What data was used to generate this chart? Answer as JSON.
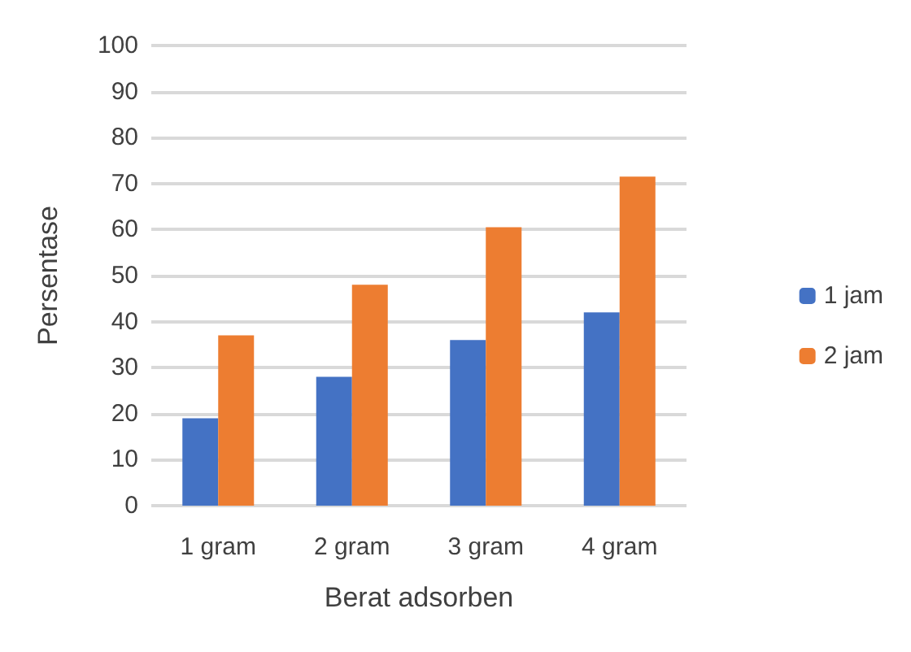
{
  "chart_data": {
    "type": "bar",
    "xlabel": "Berat adsorben",
    "ylabel": "Persentase",
    "categories": [
      "1 gram",
      "2 gram",
      "3 gram",
      "4 gram"
    ],
    "series": [
      {
        "name": "1 jam",
        "color": "#4472c4",
        "values": [
          19,
          28,
          36,
          42
        ]
      },
      {
        "name": "2 jam",
        "color": "#ed7d31",
        "values": [
          37,
          48,
          60.5,
          71.5
        ]
      }
    ],
    "ylim": [
      0,
      100
    ],
    "yticks": [
      0,
      10,
      20,
      30,
      40,
      50,
      60,
      70,
      80,
      90,
      100
    ],
    "grid": "y",
    "legend": "right"
  }
}
